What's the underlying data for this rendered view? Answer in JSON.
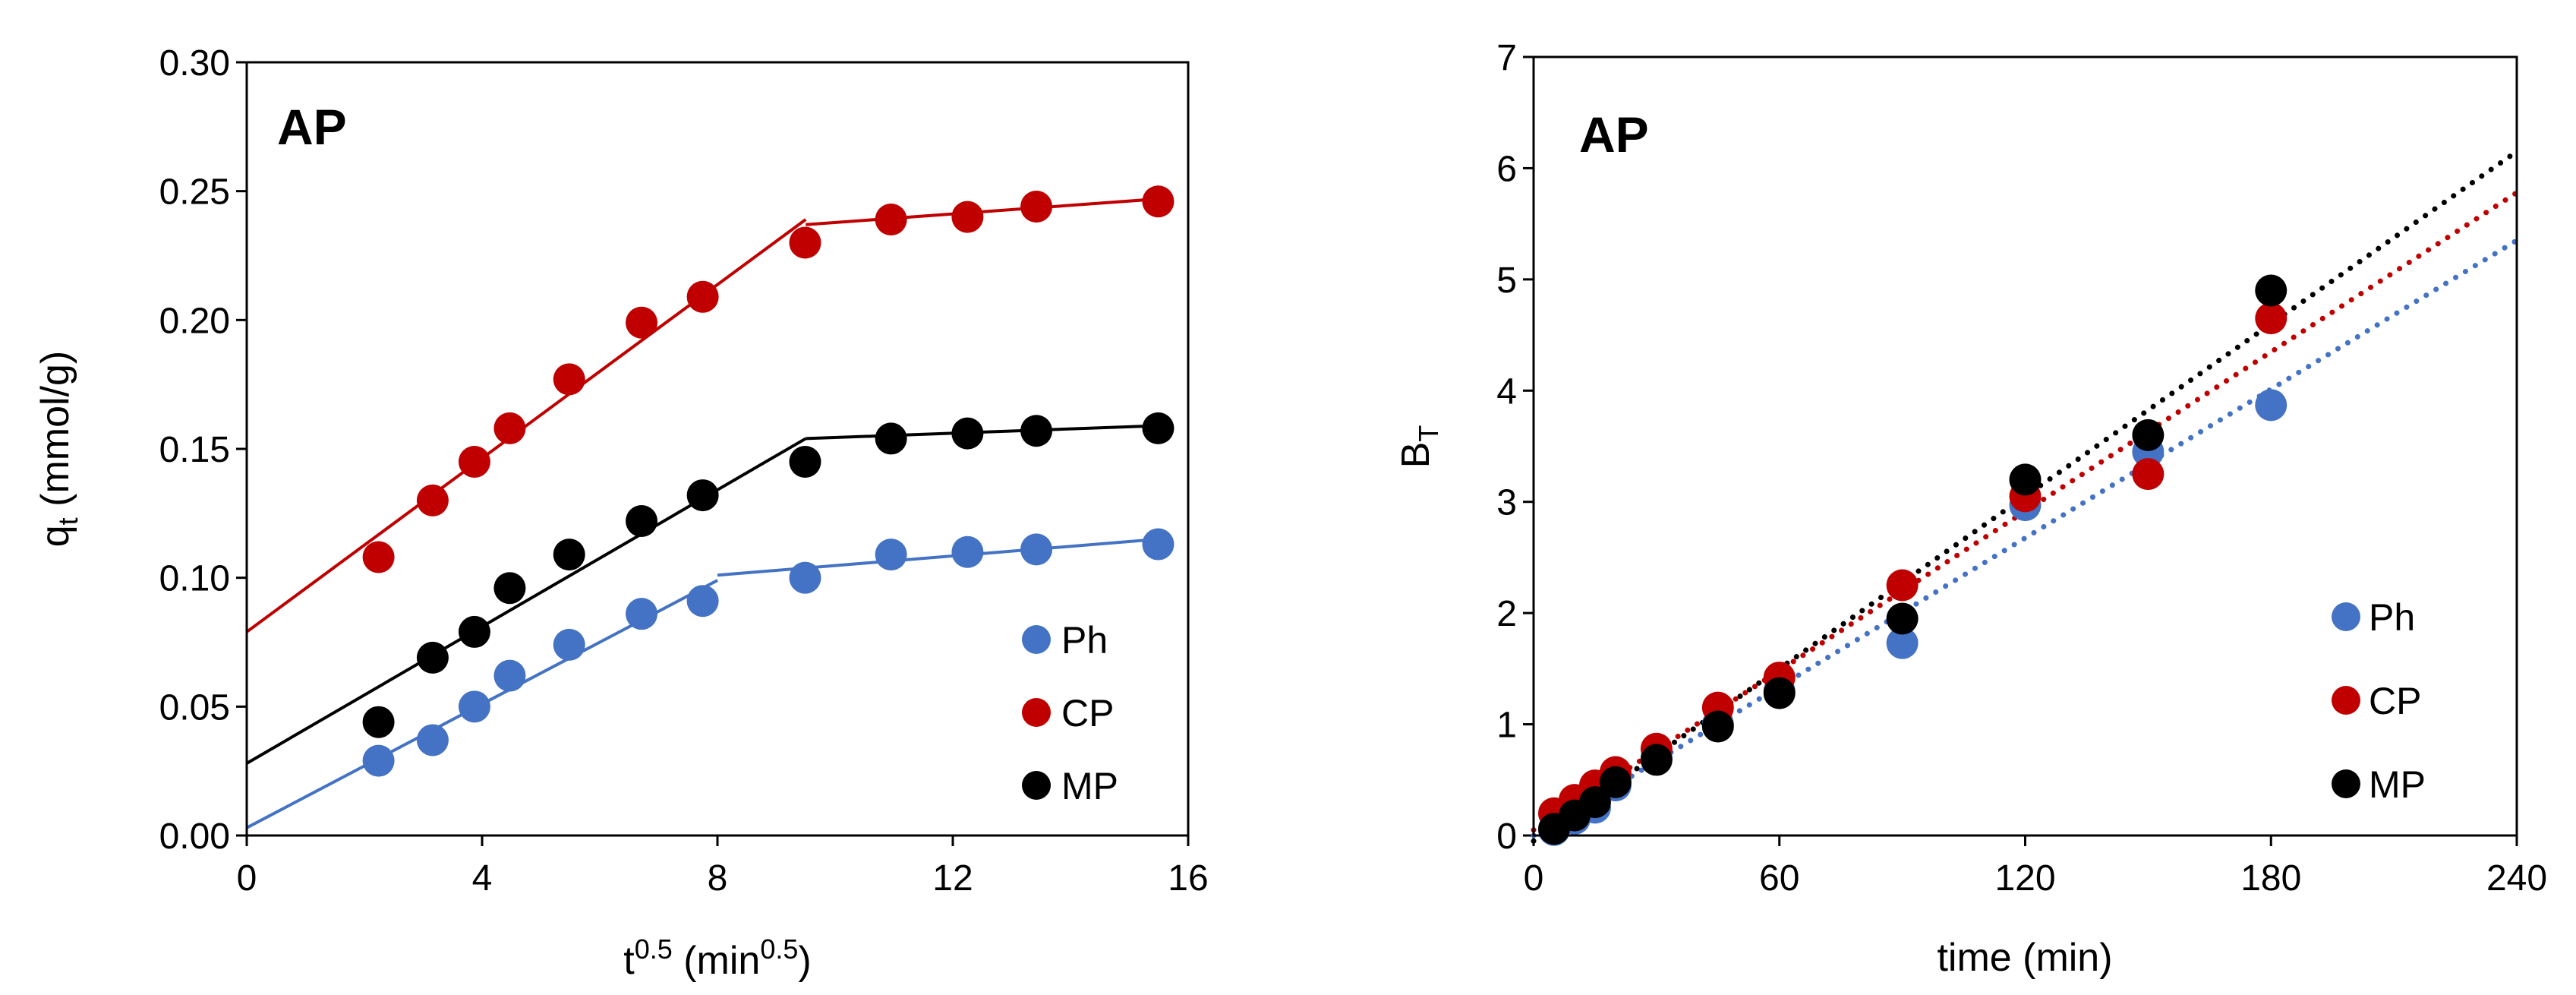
{
  "colors": {
    "Ph": "#4472c4",
    "CP": "#c00000",
    "MP": "#000000"
  },
  "chart_data": [
    {
      "type": "scatter",
      "panel_label": "AP",
      "xlabel": {
        "base": "t",
        "sup": "0.5",
        "unit_open": " (min",
        "unit_sup": "0.5",
        "unit_close": ")"
      },
      "ylabel": {
        "base": "q",
        "sub": "t",
        "rest": " (mmol/g)"
      },
      "xlim": [
        0,
        16
      ],
      "ylim": [
        0,
        0.3
      ],
      "xticks": [
        0,
        4,
        8,
        12,
        16
      ],
      "xtick_labels": [
        "0",
        "4",
        "8",
        "12",
        "16"
      ],
      "yticks": [
        0,
        0.05,
        0.1,
        0.15,
        0.2,
        0.25,
        0.3
      ],
      "ytick_labels": [
        "0.00",
        "0.05",
        "0.10",
        "0.15",
        "0.20",
        "0.25",
        "0.30"
      ],
      "legend": [
        "Ph",
        "CP",
        "MP"
      ],
      "series": [
        {
          "name": "Ph",
          "color": "#4472c4",
          "x": [
            2.24,
            3.16,
            3.87,
            4.47,
            5.48,
            6.71,
            7.75,
            9.49,
            10.95,
            12.25,
            13.42,
            15.49
          ],
          "y": [
            0.029,
            0.037,
            0.05,
            0.062,
            0.074,
            0.086,
            0.091,
            0.1,
            0.109,
            0.11,
            0.111,
            0.113
          ],
          "fits": [
            {
              "x": [
                0,
                8
              ],
              "y": [
                0.003,
                0.099
              ]
            },
            {
              "x": [
                8,
                15.5
              ],
              "y": [
                0.101,
                0.115
              ]
            }
          ]
        },
        {
          "name": "CP",
          "color": "#c00000",
          "x": [
            2.24,
            3.16,
            3.87,
            4.47,
            5.48,
            6.71,
            7.75,
            9.49,
            10.95,
            12.25,
            13.42,
            15.49
          ],
          "y": [
            0.108,
            0.13,
            0.145,
            0.158,
            0.177,
            0.199,
            0.209,
            0.23,
            0.239,
            0.24,
            0.244,
            0.246
          ],
          "fits": [
            {
              "x": [
                0,
                9.5
              ],
              "y": [
                0.079,
                0.239
              ]
            },
            {
              "x": [
                9.5,
                15.5
              ],
              "y": [
                0.237,
                0.247
              ]
            }
          ]
        },
        {
          "name": "MP",
          "color": "#000000",
          "x": [
            2.24,
            3.16,
            3.87,
            4.47,
            5.48,
            6.71,
            7.75,
            9.49,
            10.95,
            12.25,
            13.42,
            15.49
          ],
          "y": [
            0.044,
            0.069,
            0.079,
            0.096,
            0.109,
            0.122,
            0.132,
            0.145,
            0.154,
            0.156,
            0.157,
            0.158
          ],
          "fits": [
            {
              "x": [
                0,
                9.5
              ],
              "y": [
                0.028,
                0.154
              ]
            },
            {
              "x": [
                9.5,
                15.5
              ],
              "y": [
                0.154,
                0.159
              ]
            }
          ]
        }
      ]
    },
    {
      "type": "scatter",
      "panel_label": "AP",
      "xlabel": {
        "base": "time (min)"
      },
      "ylabel": {
        "base": "B",
        "sub": "T",
        "rest": ""
      },
      "xlim": [
        0,
        240
      ],
      "ylim": [
        0,
        7
      ],
      "xticks": [
        0,
        60,
        120,
        180,
        240
      ],
      "xtick_labels": [
        "0",
        "60",
        "120",
        "180",
        "240"
      ],
      "yticks": [
        0,
        1,
        2,
        3,
        4,
        5,
        6,
        7
      ],
      "ytick_labels": [
        "0",
        "1",
        "2",
        "3",
        "4",
        "5",
        "6",
        "7"
      ],
      "legend": [
        "Ph",
        "CP",
        "MP"
      ],
      "series": [
        {
          "name": "Ph",
          "color": "#4472c4",
          "x": [
            5,
            10,
            15,
            20,
            30,
            45,
            60,
            90,
            120,
            150,
            180
          ],
          "y": [
            0.05,
            0.15,
            0.25,
            0.45,
            0.7,
            1.0,
            1.3,
            1.73,
            2.97,
            3.45,
            3.87
          ],
          "trend": {
            "x": [
              0,
              240
            ],
            "y": [
              0.0,
              5.35
            ]
          }
        },
        {
          "name": "CP",
          "color": "#c00000",
          "x": [
            5,
            10,
            15,
            20,
            30,
            45,
            60,
            90,
            120,
            150,
            180
          ],
          "y": [
            0.2,
            0.32,
            0.45,
            0.57,
            0.78,
            1.15,
            1.42,
            2.25,
            3.05,
            3.25,
            4.65
          ],
          "trend": {
            "x": [
              0,
              240
            ],
            "y": [
              0.05,
              5.78
            ]
          }
        },
        {
          "name": "MP",
          "color": "#000000",
          "x": [
            5,
            10,
            15,
            20,
            30,
            45,
            60,
            90,
            120,
            150,
            180
          ],
          "y": [
            0.06,
            0.18,
            0.3,
            0.48,
            0.68,
            0.98,
            1.28,
            1.95,
            3.2,
            3.6,
            4.9
          ],
          "trend": {
            "x": [
              0,
              240
            ],
            "y": [
              -0.05,
              6.15
            ]
          }
        }
      ]
    }
  ]
}
